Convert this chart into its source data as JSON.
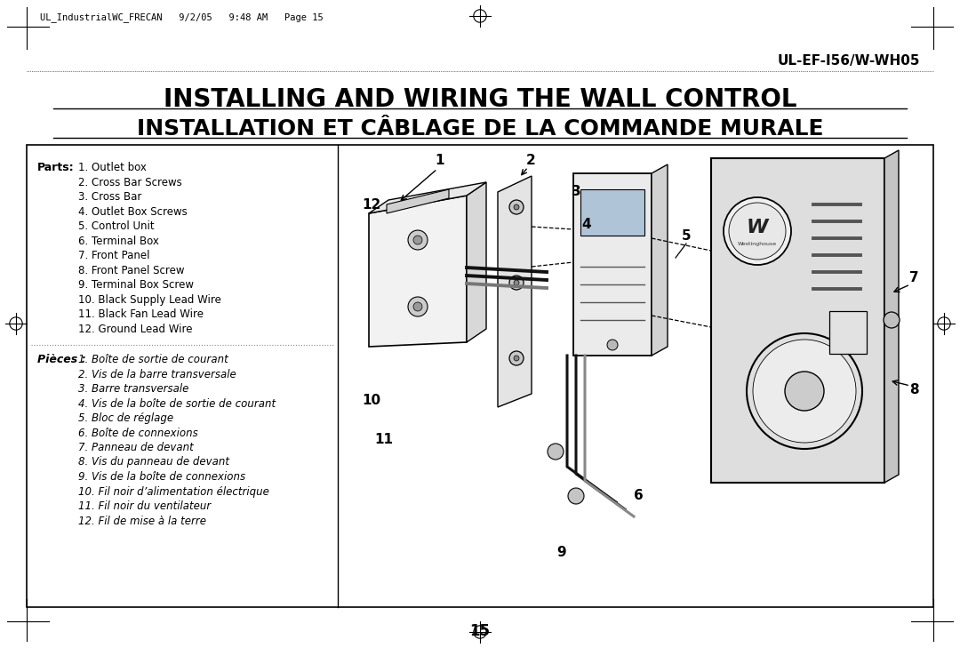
{
  "page_header": "UL_IndustrialWC_FRECAN   9/2/05   9:48 AM   Page 15",
  "model_number": "UL-EF-I56/W-WH05",
  "title_line1": "INSTALLING AND WIRING THE WALL CONTROL",
  "title_line2": "INSTALLATION ET CÂBLAGE DE LA COMMANDE MURALE",
  "parts_label": "Parts:",
  "parts_english": [
    "1. Outlet box",
    "2. Cross Bar Screws",
    "3. Cross Bar",
    "4. Outlet Box Screws",
    "5. Control Unit",
    "6. Terminal Box",
    "7. Front Panel",
    "8. Front Panel Screw",
    "9. Terminal Box Screw",
    "10. Black Supply Lead Wire",
    "11. Black Fan Lead Wire",
    "12. Ground Lead Wire"
  ],
  "pieces_label": "Pièces :",
  "parts_french": [
    "1. Boîte de sortie de courant",
    "2. Vis de la barre transversale",
    "3. Barre transversale",
    "4. Vis de la boîte de sortie de courant",
    "5. Bloc de réglage",
    "6. Boîte de connexions",
    "7. Panneau de devant",
    "8. Vis du panneau de devant",
    "9. Vis de la boîte de connexions",
    "10. Fil noir d’alimentation électrique",
    "11. Fil noir du ventilateur",
    "12. Fil de mise à la terre"
  ],
  "page_number": "15",
  "bg_color": "#ffffff",
  "text_color": "#000000",
  "border_color": "#000000"
}
